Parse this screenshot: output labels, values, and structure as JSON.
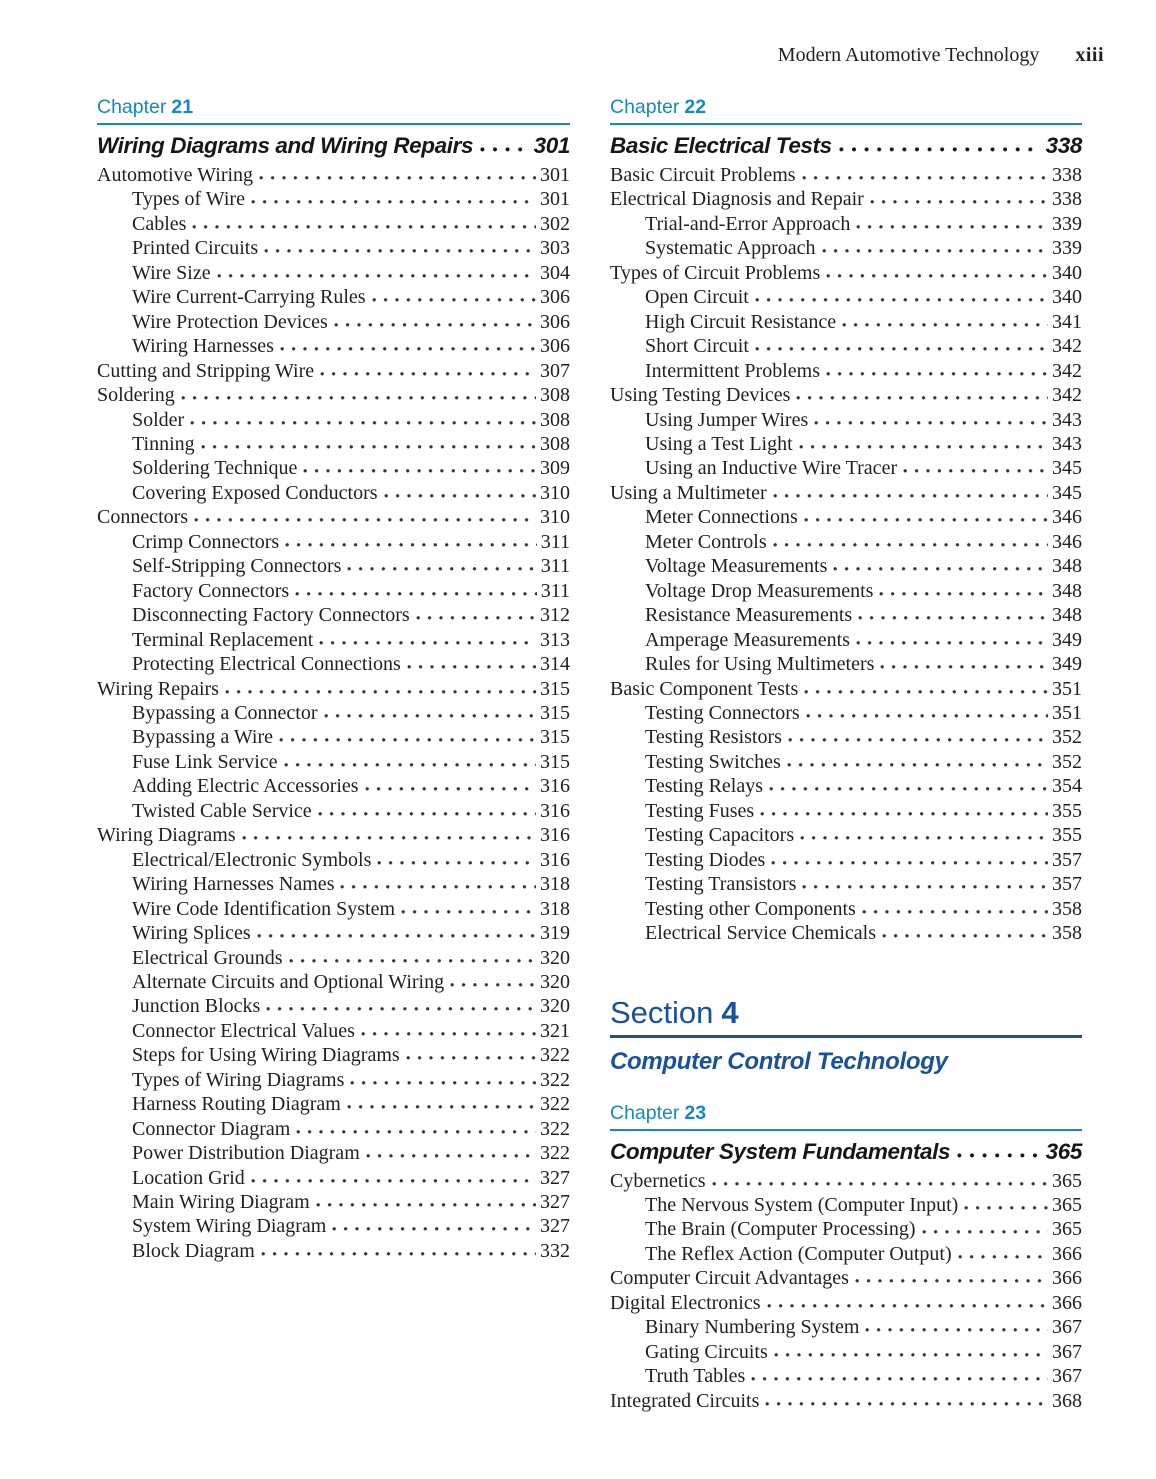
{
  "header": {
    "book_title": "Modern Automotive Technology",
    "folio": "xiii"
  },
  "colors": {
    "chapter_blue": "#1787c6",
    "section_blue": "#1a519f",
    "text_ink": "#242021"
  },
  "left_column": {
    "chapter": {
      "label": "Chapter",
      "number": "21",
      "title": "Wiring Diagrams and Wiring Repairs",
      "page": "301"
    },
    "entries": [
      {
        "label": "Automotive Wiring",
        "page": "301",
        "level": 1
      },
      {
        "label": "Types of Wire",
        "page": "301",
        "level": 2
      },
      {
        "label": "Cables",
        "page": "302",
        "level": 2
      },
      {
        "label": "Printed Circuits",
        "page": "303",
        "level": 2
      },
      {
        "label": "Wire Size",
        "page": "304",
        "level": 2
      },
      {
        "label": "Wire Current-Carrying Rules",
        "page": "306",
        "level": 2
      },
      {
        "label": "Wire Protection Devices",
        "page": "306",
        "level": 2
      },
      {
        "label": "Wiring Harnesses",
        "page": "306",
        "level": 2
      },
      {
        "label": "Cutting and Stripping Wire",
        "page": "307",
        "level": 1
      },
      {
        "label": "Soldering",
        "page": "308",
        "level": 1
      },
      {
        "label": "Solder",
        "page": "308",
        "level": 2
      },
      {
        "label": "Tinning",
        "page": "308",
        "level": 2
      },
      {
        "label": "Soldering Technique",
        "page": "309",
        "level": 2
      },
      {
        "label": "Covering Exposed Conductors",
        "page": "310",
        "level": 2
      },
      {
        "label": "Connectors",
        "page": "310",
        "level": 1
      },
      {
        "label": "Crimp Connectors",
        "page": "311",
        "level": 2
      },
      {
        "label": "Self-Stripping Connectors",
        "page": "311",
        "level": 2
      },
      {
        "label": "Factory Connectors",
        "page": "311",
        "level": 2
      },
      {
        "label": "Disconnecting Factory Connectors",
        "page": "312",
        "level": 2
      },
      {
        "label": "Terminal Replacement",
        "page": "313",
        "level": 2
      },
      {
        "label": "Protecting Electrical Connections",
        "page": "314",
        "level": 2
      },
      {
        "label": "Wiring Repairs",
        "page": "315",
        "level": 1
      },
      {
        "label": "Bypassing a Connector",
        "page": "315",
        "level": 2
      },
      {
        "label": "Bypassing a Wire",
        "page": "315",
        "level": 2
      },
      {
        "label": "Fuse Link Service",
        "page": "315",
        "level": 2
      },
      {
        "label": "Adding Electric Accessories",
        "page": "316",
        "level": 2
      },
      {
        "label": "Twisted Cable Service",
        "page": "316",
        "level": 2
      },
      {
        "label": "Wiring Diagrams",
        "page": "316",
        "level": 1
      },
      {
        "label": "Electrical/Electronic Symbols",
        "page": "316",
        "level": 2
      },
      {
        "label": "Wiring Harnesses Names",
        "page": "318",
        "level": 2
      },
      {
        "label": "Wire Code Identification System",
        "page": "318",
        "level": 2
      },
      {
        "label": "Wiring Splices",
        "page": "319",
        "level": 2
      },
      {
        "label": "Electrical Grounds",
        "page": "320",
        "level": 2
      },
      {
        "label": "Alternate Circuits and Optional Wiring",
        "page": "320",
        "level": 2
      },
      {
        "label": "Junction Blocks",
        "page": "320",
        "level": 2
      },
      {
        "label": "Connector Electrical Values",
        "page": "321",
        "level": 2
      },
      {
        "label": "Steps for Using Wiring Diagrams",
        "page": "322",
        "level": 2
      },
      {
        "label": "Types of Wiring Diagrams",
        "page": "322",
        "level": 2
      },
      {
        "label": "Harness Routing Diagram",
        "page": "322",
        "level": 2
      },
      {
        "label": "Connector Diagram",
        "page": "322",
        "level": 2
      },
      {
        "label": "Power Distribution Diagram",
        "page": "322",
        "level": 2
      },
      {
        "label": "Location Grid",
        "page": "327",
        "level": 2
      },
      {
        "label": "Main Wiring Diagram",
        "page": "327",
        "level": 2
      },
      {
        "label": "System Wiring Diagram",
        "page": "327",
        "level": 2
      },
      {
        "label": "Block Diagram",
        "page": "332",
        "level": 2
      }
    ]
  },
  "right_column": {
    "chapter22": {
      "label": "Chapter",
      "number": "22",
      "title": "Basic Electrical Tests",
      "page": "338",
      "entries": [
        {
          "label": "Basic Circuit Problems",
          "page": "338",
          "level": 1
        },
        {
          "label": "Electrical Diagnosis and Repair",
          "page": "338",
          "level": 1
        },
        {
          "label": "Trial-and-Error Approach",
          "page": "339",
          "level": 2
        },
        {
          "label": "Systematic Approach",
          "page": "339",
          "level": 2
        },
        {
          "label": "Types of Circuit Problems",
          "page": "340",
          "level": 1
        },
        {
          "label": "Open Circuit",
          "page": "340",
          "level": 2
        },
        {
          "label": "High Circuit Resistance",
          "page": "341",
          "level": 2
        },
        {
          "label": "Short Circuit",
          "page": "342",
          "level": 2
        },
        {
          "label": "Intermittent Problems",
          "page": "342",
          "level": 2
        },
        {
          "label": "Using Testing Devices",
          "page": "342",
          "level": 1
        },
        {
          "label": "Using Jumper Wires",
          "page": "343",
          "level": 2
        },
        {
          "label": "Using a Test Light",
          "page": "343",
          "level": 2
        },
        {
          "label": "Using an Inductive Wire Tracer",
          "page": "345",
          "level": 2
        },
        {
          "label": "Using a Multimeter",
          "page": "345",
          "level": 1
        },
        {
          "label": "Meter Connections",
          "page": "346",
          "level": 2
        },
        {
          "label": "Meter Controls",
          "page": "346",
          "level": 2
        },
        {
          "label": "Voltage Measurements",
          "page": "348",
          "level": 2
        },
        {
          "label": "Voltage Drop Measurements",
          "page": "348",
          "level": 2
        },
        {
          "label": "Resistance Measurements",
          "page": "348",
          "level": 2
        },
        {
          "label": "Amperage Measurements",
          "page": "349",
          "level": 2
        },
        {
          "label": "Rules for Using Multimeters",
          "page": "349",
          "level": 2
        },
        {
          "label": "Basic Component Tests",
          "page": "351",
          "level": 1
        },
        {
          "label": "Testing Connectors",
          "page": "351",
          "level": 2
        },
        {
          "label": "Testing Resistors",
          "page": "352",
          "level": 2
        },
        {
          "label": "Testing Switches",
          "page": "352",
          "level": 2
        },
        {
          "label": "Testing Relays",
          "page": "354",
          "level": 2
        },
        {
          "label": "Testing Fuses",
          "page": "355",
          "level": 2
        },
        {
          "label": "Testing Capacitors",
          "page": "355",
          "level": 2
        },
        {
          "label": "Testing Diodes",
          "page": "357",
          "level": 2
        },
        {
          "label": "Testing Transistors",
          "page": "357",
          "level": 2
        },
        {
          "label": "Testing other Components",
          "page": "358",
          "level": 2
        },
        {
          "label": "Electrical Service Chemicals",
          "page": "358",
          "level": 2
        }
      ]
    },
    "section": {
      "label": "Section",
      "number": "4",
      "title": "Computer Control Technology"
    },
    "chapter23": {
      "label": "Chapter",
      "number": "23",
      "title": "Computer System Fundamentals",
      "page": "365",
      "entries": [
        {
          "label": "Cybernetics",
          "page": "365",
          "level": 1
        },
        {
          "label": "The Nervous System (Computer Input)",
          "page": "365",
          "level": 2
        },
        {
          "label": "The Brain (Computer Processing)",
          "page": "365",
          "level": 2
        },
        {
          "label": "The Reflex Action (Computer Output)",
          "page": "366",
          "level": 2
        },
        {
          "label": "Computer Circuit Advantages",
          "page": "366",
          "level": 1
        },
        {
          "label": "Digital Electronics",
          "page": "366",
          "level": 1
        },
        {
          "label": "Binary Numbering System",
          "page": "367",
          "level": 2
        },
        {
          "label": "Gating Circuits",
          "page": "367",
          "level": 2
        },
        {
          "label": "Truth Tables",
          "page": "367",
          "level": 2
        },
        {
          "label": "Integrated Circuits",
          "page": "368",
          "level": 1
        }
      ]
    }
  }
}
